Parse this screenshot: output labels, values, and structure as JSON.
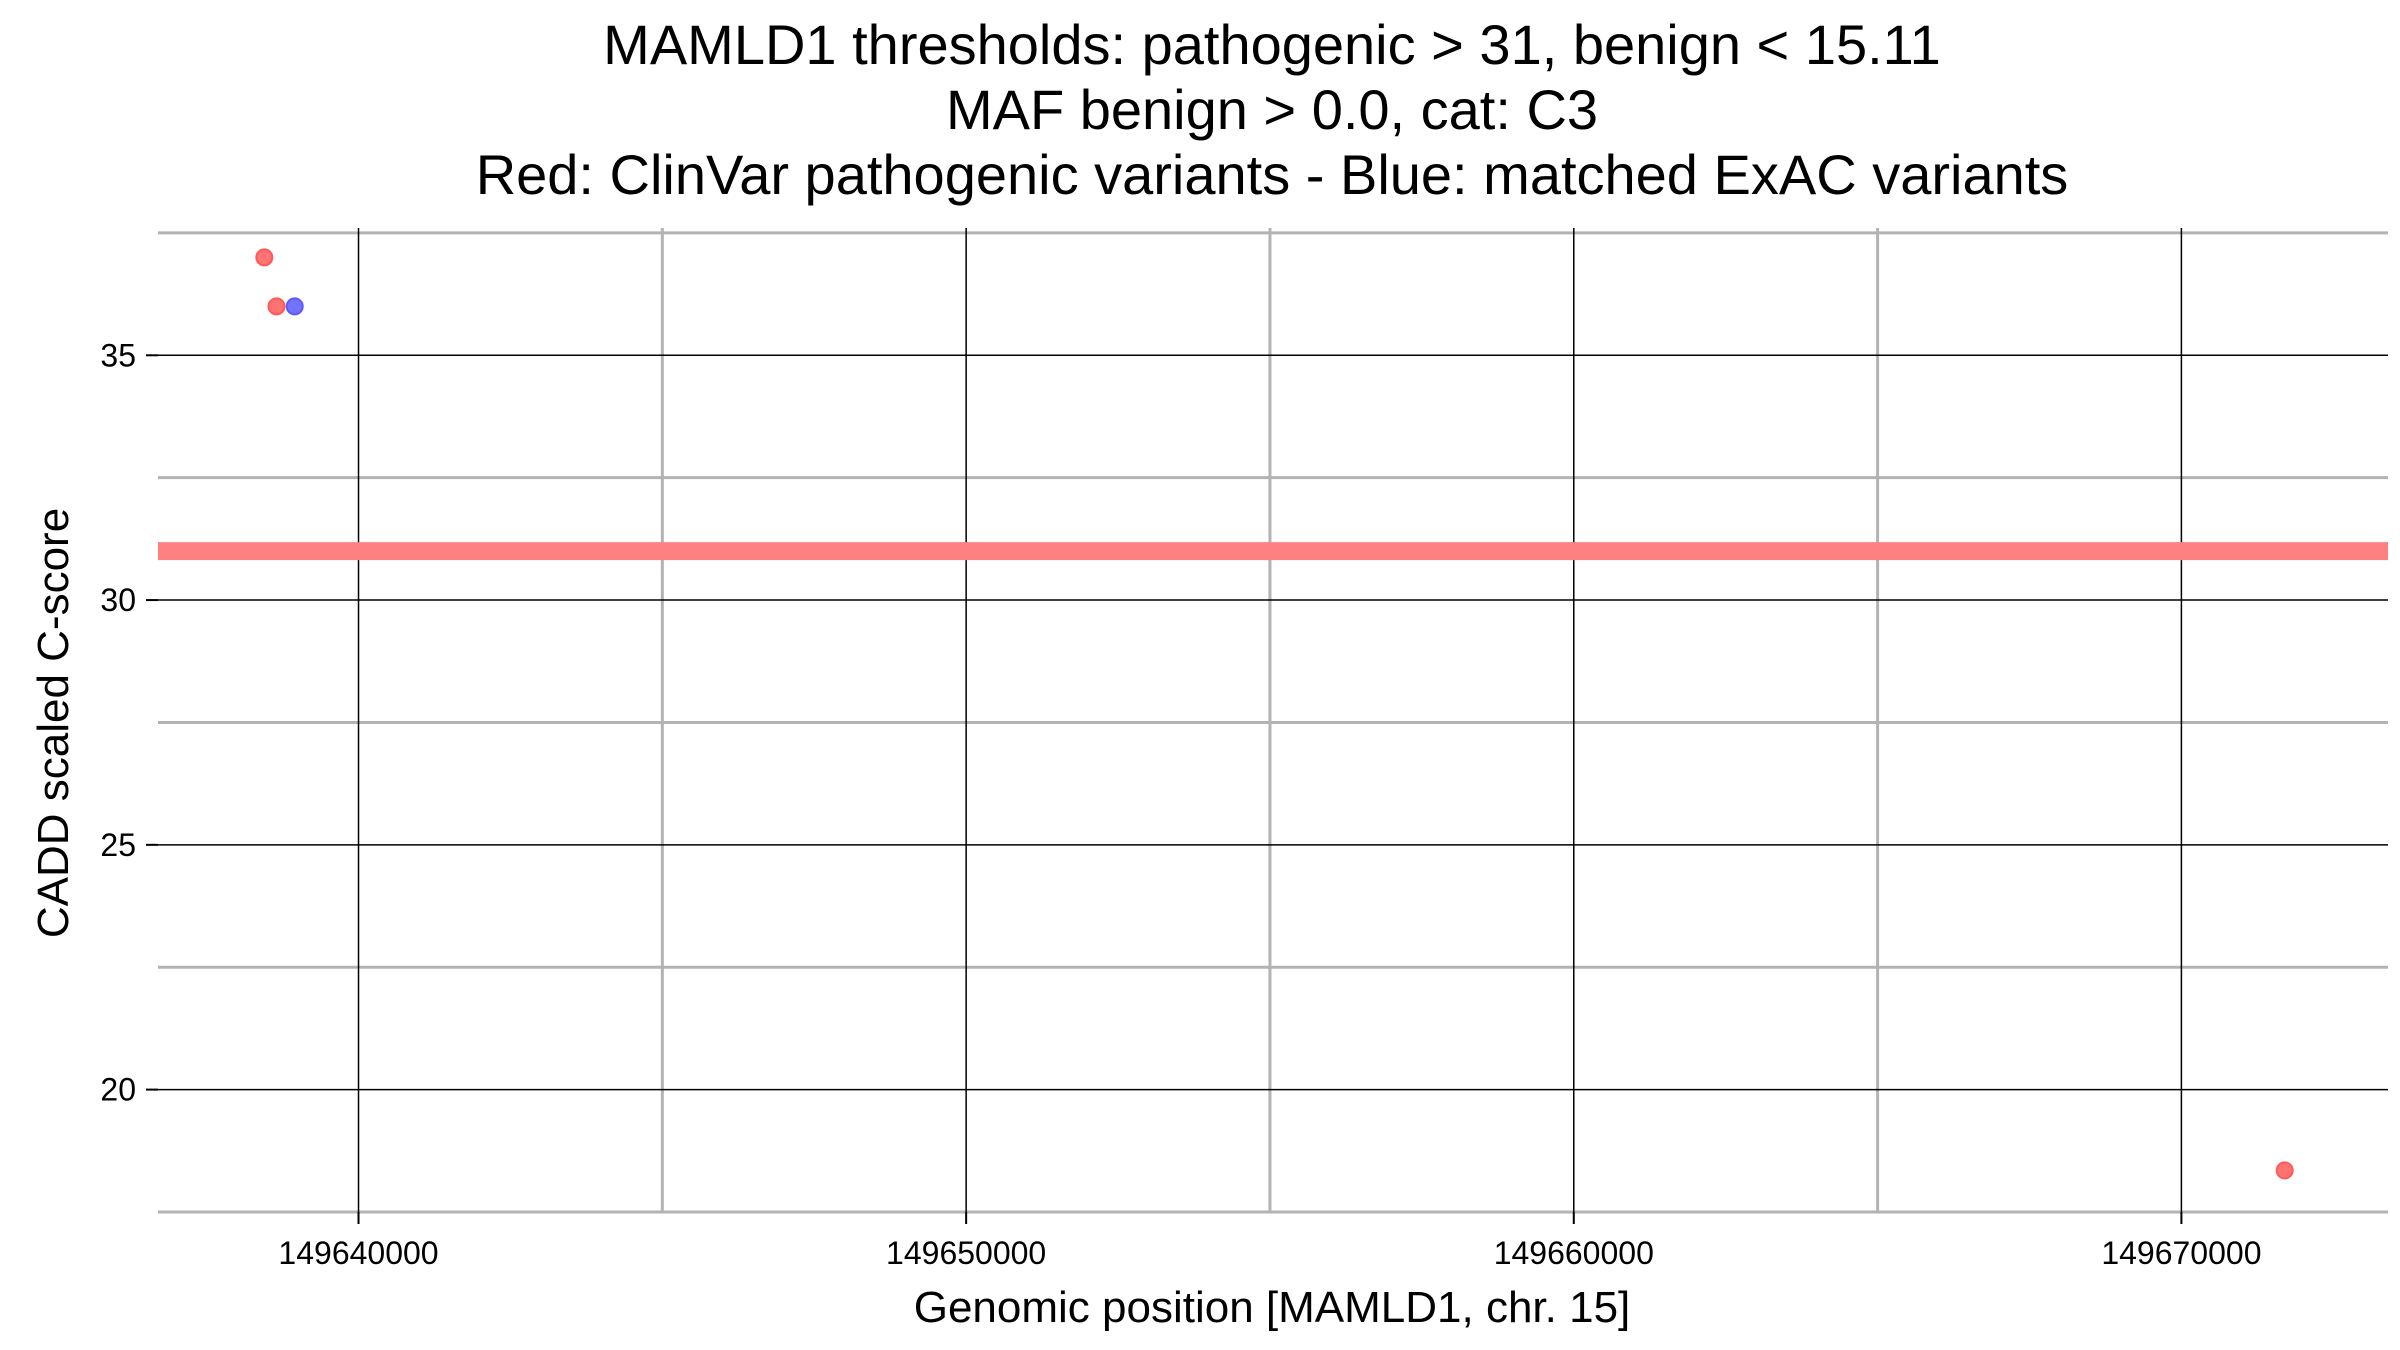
{
  "chart_data": {
    "type": "scatter",
    "title": [
      "MAMLD1 thresholds: pathogenic > 31, benign < 15.11",
      "MAF benign > 0.0, cat: C3",
      "Red: ClinVar pathogenic variants - Blue: matched ExAC variants"
    ],
    "xlabel": "Genomic position [MAMLD1, chr. 15]",
    "ylabel": "CADD scaled C-score",
    "xlim": [
      149636700,
      149673400
    ],
    "ylim": [
      17.5,
      37.6
    ],
    "x_ticks": [
      149640000,
      149650000,
      149660000,
      149670000
    ],
    "x_tick_labels": [
      "149640000",
      "149650000",
      "149660000",
      "149670000"
    ],
    "y_ticks": [
      20,
      25,
      30,
      35
    ],
    "y_tick_labels": [
      "20",
      "25",
      "30",
      "35"
    ],
    "x_minor_grid": [
      149645000,
      149655000,
      149665000
    ],
    "y_minor_grid": [
      17.5,
      22.5,
      27.5,
      32.5,
      37.5
    ],
    "grid": true,
    "legend": "none",
    "threshold_line": {
      "y": 31,
      "color": "#ff8080"
    },
    "series": [
      {
        "color": "#ff5a5a",
        "points": [
          {
            "x": 149638450,
            "y": 37
          },
          {
            "x": 149638650,
            "y": 36
          },
          {
            "x": 149671700,
            "y": 18.35
          }
        ]
      },
      {
        "color": "#5a5aff",
        "points": [
          {
            "x": 149638950,
            "y": 36
          }
        ]
      }
    ]
  }
}
